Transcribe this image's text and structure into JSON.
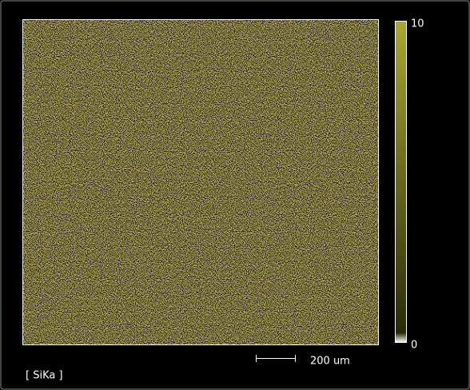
{
  "colorbar": {
    "max": "10",
    "min": "0"
  },
  "scale_bar": {
    "label": "200 um"
  },
  "map": {
    "label": "[ SiKa ]"
  }
}
